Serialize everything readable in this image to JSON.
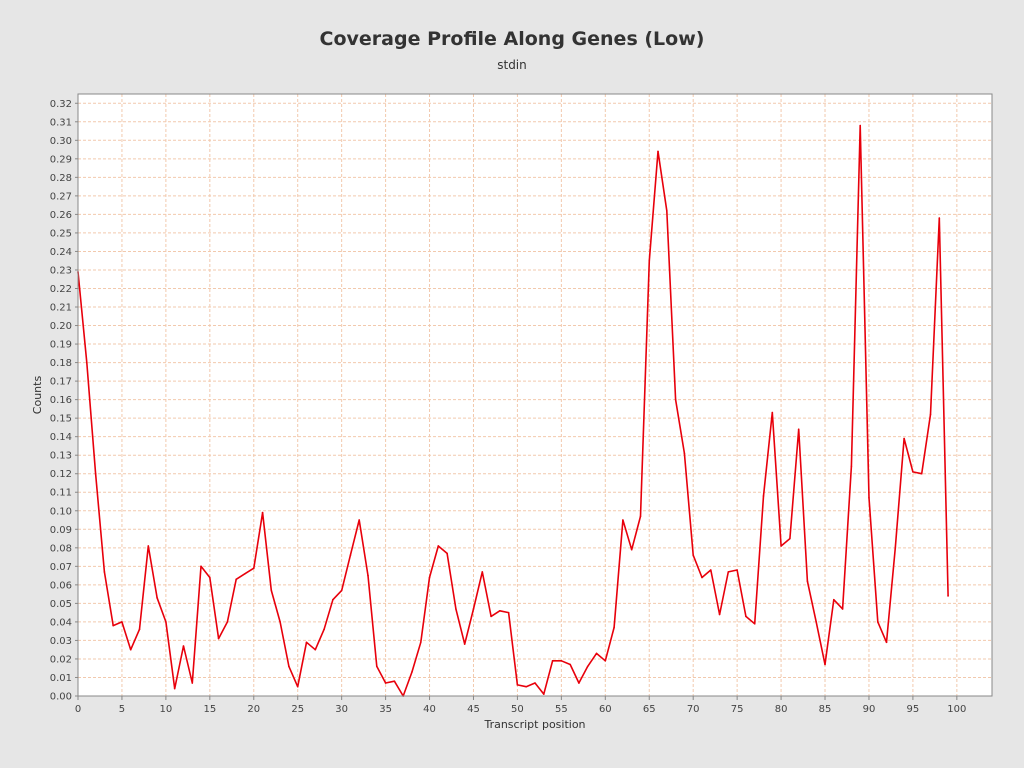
{
  "chart_data": {
    "type": "line",
    "title": "Coverage Profile Along Genes (Low)",
    "subtitle": "stdin",
    "xlabel": "Transcript position",
    "ylabel": "Counts",
    "xlim": [
      0,
      104
    ],
    "ylim": [
      0,
      0.325
    ],
    "x_ticks": [
      "0",
      "5",
      "10",
      "15",
      "20",
      "25",
      "30",
      "35",
      "40",
      "45",
      "50",
      "55",
      "60",
      "65",
      "70",
      "75",
      "80",
      "85",
      "90",
      "95",
      "100"
    ],
    "y_ticks": [
      "0.00",
      "0.01",
      "0.02",
      "0.03",
      "0.04",
      "0.05",
      "0.06",
      "0.07",
      "0.08",
      "0.09",
      "0.10",
      "0.11",
      "0.12",
      "0.13",
      "0.14",
      "0.15",
      "0.16",
      "0.17",
      "0.18",
      "0.19",
      "0.20",
      "0.21",
      "0.22",
      "0.23",
      "0.24",
      "0.25",
      "0.26",
      "0.27",
      "0.28",
      "0.29",
      "0.30",
      "0.31",
      "0.32"
    ],
    "grid": true,
    "series": [
      {
        "color": "#e8000b",
        "x": [
          0,
          1,
          2,
          3,
          4,
          5,
          6,
          7,
          8,
          9,
          10,
          11,
          12,
          13,
          14,
          15,
          16,
          17,
          18,
          19,
          20,
          21,
          22,
          23,
          24,
          25,
          26,
          27,
          28,
          29,
          30,
          31,
          32,
          33,
          34,
          35,
          36,
          37,
          38,
          39,
          40,
          41,
          42,
          43,
          44,
          45,
          46,
          47,
          48,
          49,
          50,
          51,
          52,
          53,
          54,
          55,
          56,
          57,
          58,
          59,
          60,
          61,
          62,
          63,
          64,
          65,
          66,
          67,
          68,
          69,
          70,
          71,
          72,
          73,
          74,
          75,
          76,
          77,
          78,
          79,
          80,
          81,
          82,
          83,
          84,
          85,
          86,
          87,
          88,
          89,
          90,
          91,
          92,
          93,
          94,
          95,
          96,
          97,
          98,
          99
        ],
        "values": [
          0.229,
          0.18,
          0.12,
          0.067,
          0.038,
          0.04,
          0.025,
          0.036,
          0.081,
          0.053,
          0.04,
          0.004,
          0.027,
          0.007,
          0.07,
          0.064,
          0.031,
          0.04,
          0.063,
          0.066,
          0.069,
          0.099,
          0.057,
          0.04,
          0.016,
          0.005,
          0.029,
          0.025,
          0.036,
          0.052,
          0.057,
          0.076,
          0.095,
          0.065,
          0.016,
          0.007,
          0.008,
          0.0,
          0.013,
          0.029,
          0.064,
          0.081,
          0.077,
          0.047,
          0.028,
          0.047,
          0.067,
          0.043,
          0.046,
          0.045,
          0.006,
          0.005,
          0.007,
          0.001,
          0.019,
          0.019,
          0.017,
          0.007,
          0.016,
          0.023,
          0.019,
          0.037,
          0.095,
          0.079,
          0.097,
          0.235,
          0.294,
          0.262,
          0.16,
          0.131,
          0.076,
          0.064,
          0.068,
          0.044,
          0.067,
          0.068,
          0.043,
          0.039,
          0.108,
          0.153,
          0.081,
          0.085,
          0.144,
          0.062,
          0.04,
          0.017,
          0.052,
          0.047,
          0.124,
          0.308,
          0.107,
          0.04,
          0.029,
          0.08,
          0.139,
          0.121,
          0.12,
          0.152,
          0.258,
          0.054
        ]
      }
    ]
  }
}
